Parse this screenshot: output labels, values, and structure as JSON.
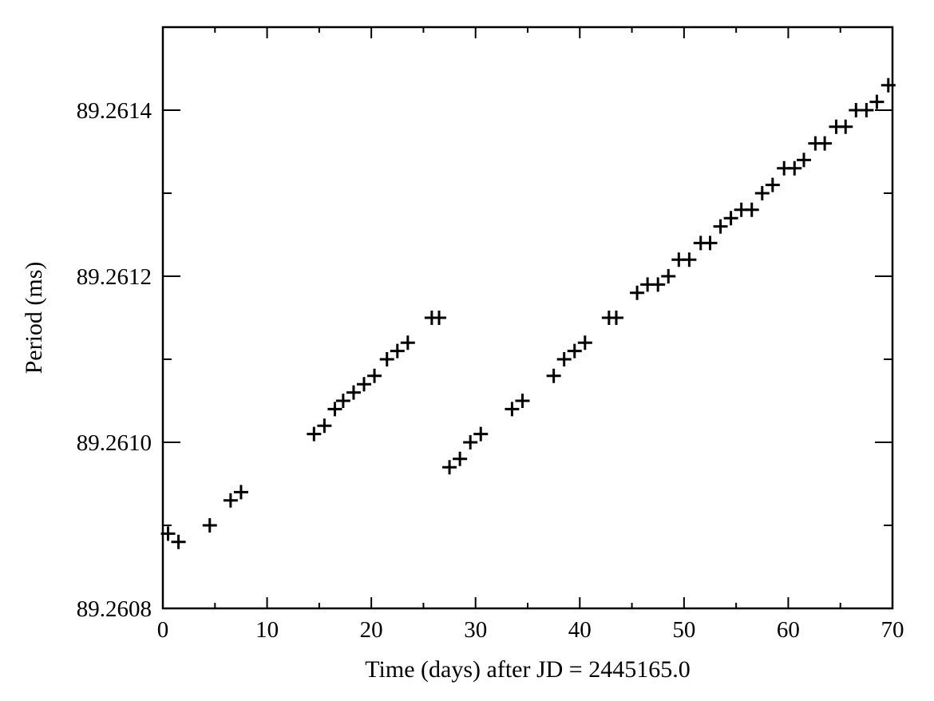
{
  "chart_data": {
    "type": "scatter",
    "marker": "plus",
    "title": "",
    "xlabel": "Time (days) after JD = 2445165.0",
    "ylabel": "Period (ms)",
    "xlim": [
      0,
      70
    ],
    "ylim": [
      89.2608,
      89.2615
    ],
    "x_ticks": [
      0,
      10,
      20,
      30,
      40,
      50,
      60,
      70
    ],
    "x_tick_labels": [
      "0",
      "10",
      "20",
      "30",
      "40",
      "50",
      "60",
      "70"
    ],
    "y_ticks": [
      89.2608,
      89.261,
      89.2612,
      89.2614
    ],
    "y_tick_labels": [
      "89.2608",
      "89.2610",
      "89.2612",
      "89.2614"
    ],
    "grid": false,
    "color": "#000000",
    "series": [
      {
        "x": [
          0.5,
          1.5,
          4.5,
          6.5,
          7.5,
          14.5,
          15.5,
          16.5,
          17.3,
          18.3,
          19.3,
          20.3,
          21.5,
          22.5,
          23.5,
          25.8,
          26.5,
          27.5,
          28.5,
          29.5,
          30.5,
          33.5,
          34.5,
          37.5,
          38.5,
          39.5,
          40.5,
          42.8,
          43.5,
          45.5,
          46.5,
          47.5,
          48.5,
          49.5,
          50.5,
          51.6,
          52.5,
          53.5,
          54.5,
          55.5,
          56.5,
          57.5,
          58.5,
          59.6,
          60.6,
          61.5,
          62.6,
          63.5,
          64.6,
          65.5,
          66.5,
          67.5,
          68.5,
          69.6
        ],
        "y": [
          89.26089,
          89.26088,
          89.2609,
          89.26093,
          89.26094,
          89.26101,
          89.26102,
          89.26104,
          89.26105,
          89.26106,
          89.26107,
          89.26108,
          89.2611,
          89.26111,
          89.26112,
          89.26115,
          89.26115,
          89.26097,
          89.26098,
          89.261,
          89.26101,
          89.26104,
          89.26105,
          89.26108,
          89.2611,
          89.26111,
          89.26112,
          89.26115,
          89.26115,
          89.26118,
          89.26119,
          89.26119,
          89.2612,
          89.26122,
          89.26122,
          89.26124,
          89.26124,
          89.26126,
          89.26127,
          89.26128,
          89.26128,
          89.2613,
          89.26131,
          89.26133,
          89.26133,
          89.26134,
          89.26136,
          89.26136,
          89.26138,
          89.26138,
          89.2614,
          89.2614,
          89.26141,
          89.26143
        ]
      }
    ]
  }
}
